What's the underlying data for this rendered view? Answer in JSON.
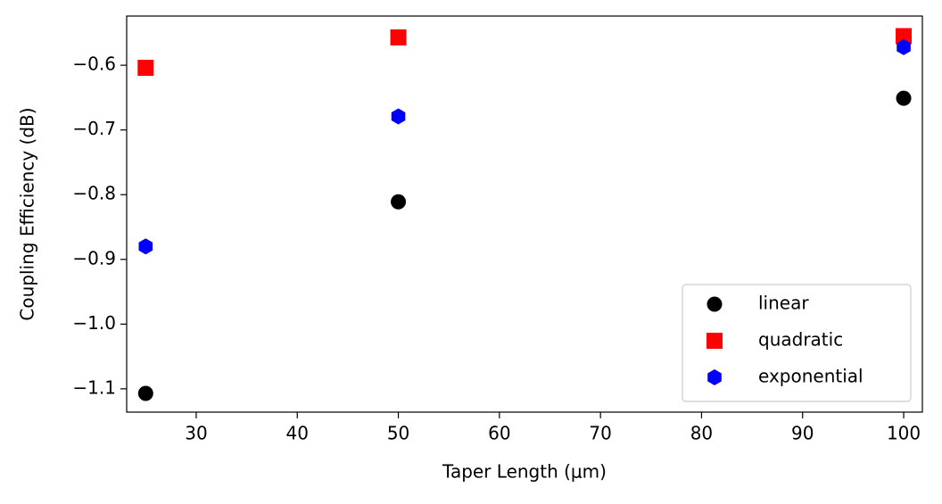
{
  "chart_data": {
    "type": "scatter",
    "x_label": "Taper Length (μm)",
    "y_label": "Coupling Efficiency (dB)",
    "xlim": [
      23.12,
      101.85
    ],
    "ylim": [
      -1.136,
      -0.524
    ],
    "xticks": [
      30,
      40,
      50,
      60,
      70,
      80,
      90,
      100
    ],
    "yticks": [
      {
        "value": -0.6,
        "label": "−0.6"
      },
      {
        "value": -0.7,
        "label": "−0.7"
      },
      {
        "value": -0.8,
        "label": "−0.8"
      },
      {
        "value": -0.9,
        "label": "−0.9"
      },
      {
        "value": -1.0,
        "label": "−1.0"
      },
      {
        "value": -1.1,
        "label": "−1.1"
      }
    ],
    "legend": "lower right",
    "series": [
      {
        "name": "linear",
        "color": "#000000",
        "marker": "circle",
        "x": [
          25,
          50,
          100
        ],
        "values": [
          -1.107,
          -0.811,
          -0.651
        ]
      },
      {
        "name": "quadratic",
        "color": "#ff0000",
        "marker": "square",
        "x": [
          25,
          50,
          100
        ],
        "values": [
          -0.604,
          -0.557,
          -0.555
        ]
      },
      {
        "name": "exponential",
        "color": "#0000ff",
        "marker": "hexagon",
        "x": [
          25,
          50,
          100
        ],
        "values": [
          -0.88,
          -0.679,
          -0.572
        ]
      }
    ]
  }
}
